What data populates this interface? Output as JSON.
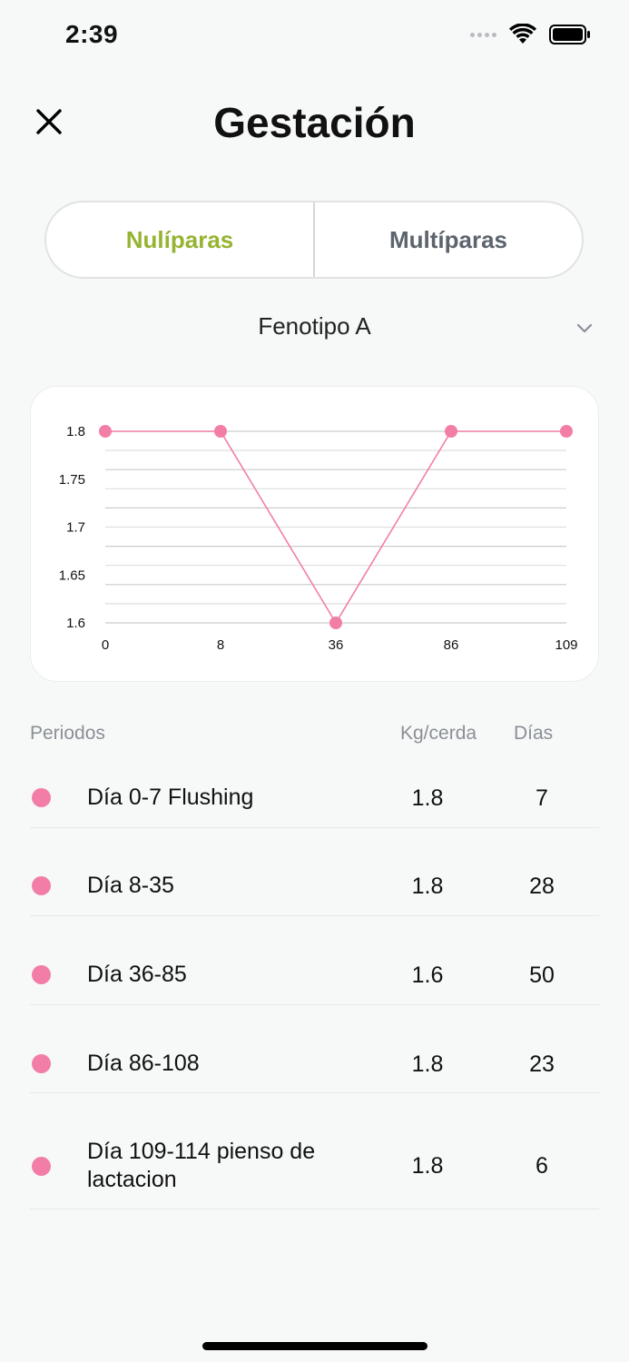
{
  "status_bar": {
    "time": "2:39"
  },
  "header": {
    "title": "Gestación",
    "close_icon": "close-icon"
  },
  "tabs": [
    {
      "label": "Nulíparas",
      "active": true
    },
    {
      "label": "Multíparas",
      "active": false
    }
  ],
  "selector": {
    "value": "Fenotipo A",
    "icon": "chevron-down-icon"
  },
  "chart_data": {
    "type": "line",
    "x": [
      0,
      8,
      36,
      86,
      109
    ],
    "series": [
      {
        "values": [
          1.8,
          1.8,
          1.6,
          1.8,
          1.8
        ],
        "color": "#f27ea7"
      }
    ],
    "ylim": [
      1.6,
      1.8
    ],
    "y_ticks": [
      "1.8",
      "1.75",
      "1.7",
      "1.65",
      "1.6"
    ],
    "x_ticks": [
      "0",
      "8",
      "36",
      "86",
      "109"
    ],
    "grid": true
  },
  "table": {
    "headers": {
      "period": "Periodos",
      "kg": "Kg/cerda",
      "days": "Días"
    },
    "rows": [
      {
        "period": "Día 0-7 Flushing",
        "kg": "1.8",
        "days": "7"
      },
      {
        "period": "Día 8-35",
        "kg": "1.8",
        "days": "28"
      },
      {
        "period": "Día 36-85",
        "kg": "1.6",
        "days": "50"
      },
      {
        "period": "Día 86-108",
        "kg": "1.8",
        "days": "23"
      },
      {
        "period": "Día 109-114 pienso de lactacion",
        "kg": "1.8",
        "days": "6"
      }
    ]
  },
  "colors": {
    "accent": "#95b431",
    "series": "#f27ea7",
    "inactive_tab": "#5c646d"
  }
}
